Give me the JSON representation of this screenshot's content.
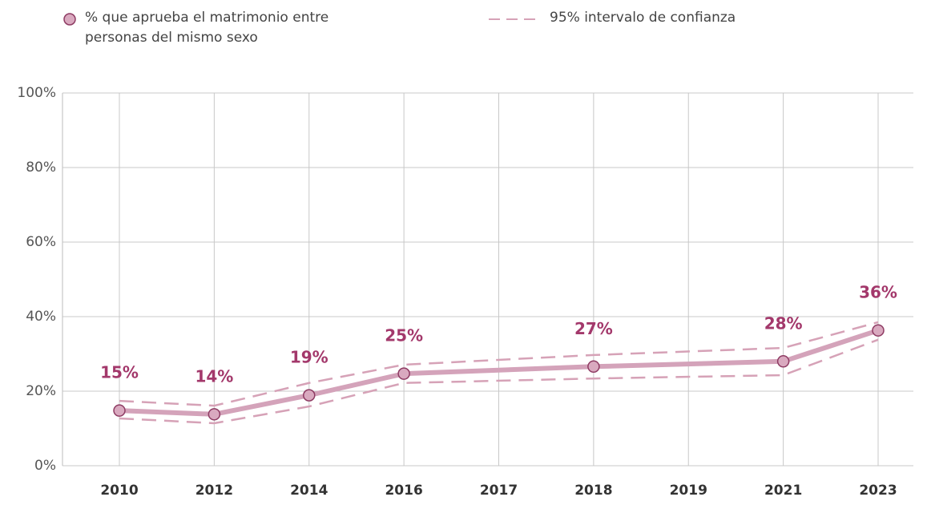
{
  "chart_data": {
    "type": "line",
    "categories": [
      "2010",
      "2012",
      "2014",
      "2016",
      "2017",
      "2018",
      "2019",
      "2021",
      "2023"
    ],
    "series": [
      {
        "name": "% que aprueba el matrimonio entre personas del mismo sexo",
        "color": "#d4a3ba",
        "marker_color": "#d9a9bf",
        "marker_edge": "#8e3b63",
        "x": [
          "2010",
          "2012",
          "2014",
          "2016",
          "2018",
          "2021",
          "2023"
        ],
        "values": [
          14.8,
          13.8,
          18.9,
          24.7,
          26.6,
          28,
          36.3
        ],
        "value_labels": [
          "15%",
          "14%",
          "19%",
          "25%",
          "27%",
          "28%",
          "36%"
        ],
        "label_color": "#a3386b"
      }
    ],
    "interval": {
      "name": "95% intervalo de confianza",
      "color": "#d6a2b7",
      "x": [
        "2010",
        "2012",
        "2014",
        "2016",
        "2018",
        "2021",
        "2023"
      ],
      "upper": [
        17.4,
        16.1,
        22.2,
        27.1,
        29.7,
        31.6,
        38.5
      ],
      "lower": [
        12.7,
        11.4,
        15.9,
        22.2,
        23.4,
        24.3,
        33.8
      ]
    },
    "ylim": [
      0,
      100
    ],
    "yticks": [
      {
        "value": 0,
        "label": "0%"
      },
      {
        "value": 20,
        "label": "20%"
      },
      {
        "value": 40,
        "label": "40%"
      },
      {
        "value": 60,
        "label": "60%"
      },
      {
        "value": 80,
        "label": "80%"
      },
      {
        "value": 100,
        "label": "100%"
      }
    ],
    "grid": true
  }
}
